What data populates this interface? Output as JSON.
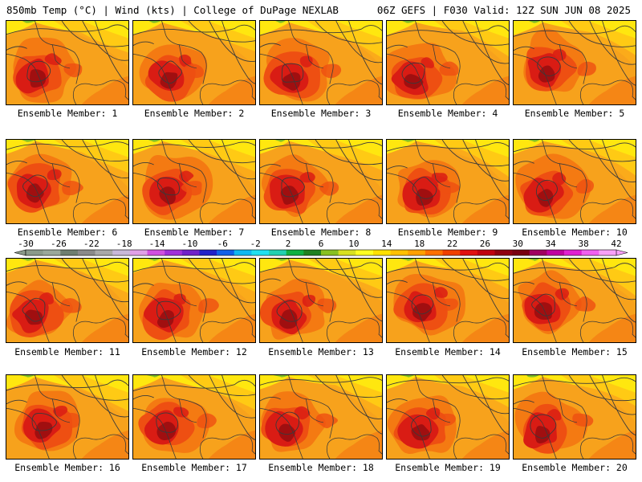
{
  "header": {
    "left": "850mb Temp (°C) | Wind (kts) | College of DuPage NEXLAB",
    "right": "06Z GEFS | F030 Valid: 12Z SUN JUN 08 2025"
  },
  "members": [
    {
      "label": "Ensemble Member: 1"
    },
    {
      "label": "Ensemble Member: 2"
    },
    {
      "label": "Ensemble Member: 3"
    },
    {
      "label": "Ensemble Member: 4"
    },
    {
      "label": "Ensemble Member: 5"
    },
    {
      "label": "Ensemble Member: 6"
    },
    {
      "label": "Ensemble Member: 7"
    },
    {
      "label": "Ensemble Member: 8"
    },
    {
      "label": "Ensemble Member: 9"
    },
    {
      "label": "Ensemble Member: 10"
    },
    {
      "label": "Ensemble Member: 11"
    },
    {
      "label": "Ensemble Member: 12"
    },
    {
      "label": "Ensemble Member: 13"
    },
    {
      "label": "Ensemble Member: 14"
    },
    {
      "label": "Ensemble Member: 15"
    },
    {
      "label": "Ensemble Member: 16"
    },
    {
      "label": "Ensemble Member: 17"
    },
    {
      "label": "Ensemble Member: 18"
    },
    {
      "label": "Ensemble Member: 19"
    },
    {
      "label": "Ensemble Member: 20"
    }
  ],
  "colorbar": {
    "labels": [
      "-30",
      "-26",
      "-22",
      "-18",
      "-14",
      "-10",
      "-6",
      "-2",
      "2",
      "6",
      "10",
      "14",
      "18",
      "22",
      "26",
      "30",
      "34",
      "38",
      "42"
    ],
    "colors": [
      "#8a9a8a",
      "#9aa89a",
      "#6e7e70",
      "#8a8a8a",
      "#a8a8a8",
      "#c8b8d8",
      "#e0a0e8",
      "#d050e0",
      "#a030d8",
      "#7020c8",
      "#2020c8",
      "#1060e8",
      "#10b8f0",
      "#20e0f0",
      "#20d0b0",
      "#10b040",
      "#208020",
      "#88c020",
      "#d8e020",
      "#ffff20",
      "#ffe000",
      "#ffc000",
      "#ffa000",
      "#ff7000",
      "#f04000",
      "#e01010",
      "#c00010",
      "#900010",
      "#780010",
      "#a00060",
      "#c000a0",
      "#e020d0",
      "#f060f0",
      "#f8a0f8"
    ]
  },
  "map_colors": {
    "yellow": "#ffe70f",
    "light_orange": "#ffb31a",
    "orange": "#f7a21c",
    "dark_orange": "#f47a12",
    "red_orange": "#ee4f12",
    "red": "#d91c14",
    "dark_red": "#a00f10",
    "green": "#7fbe2a",
    "contour": "#3a3a3a"
  }
}
